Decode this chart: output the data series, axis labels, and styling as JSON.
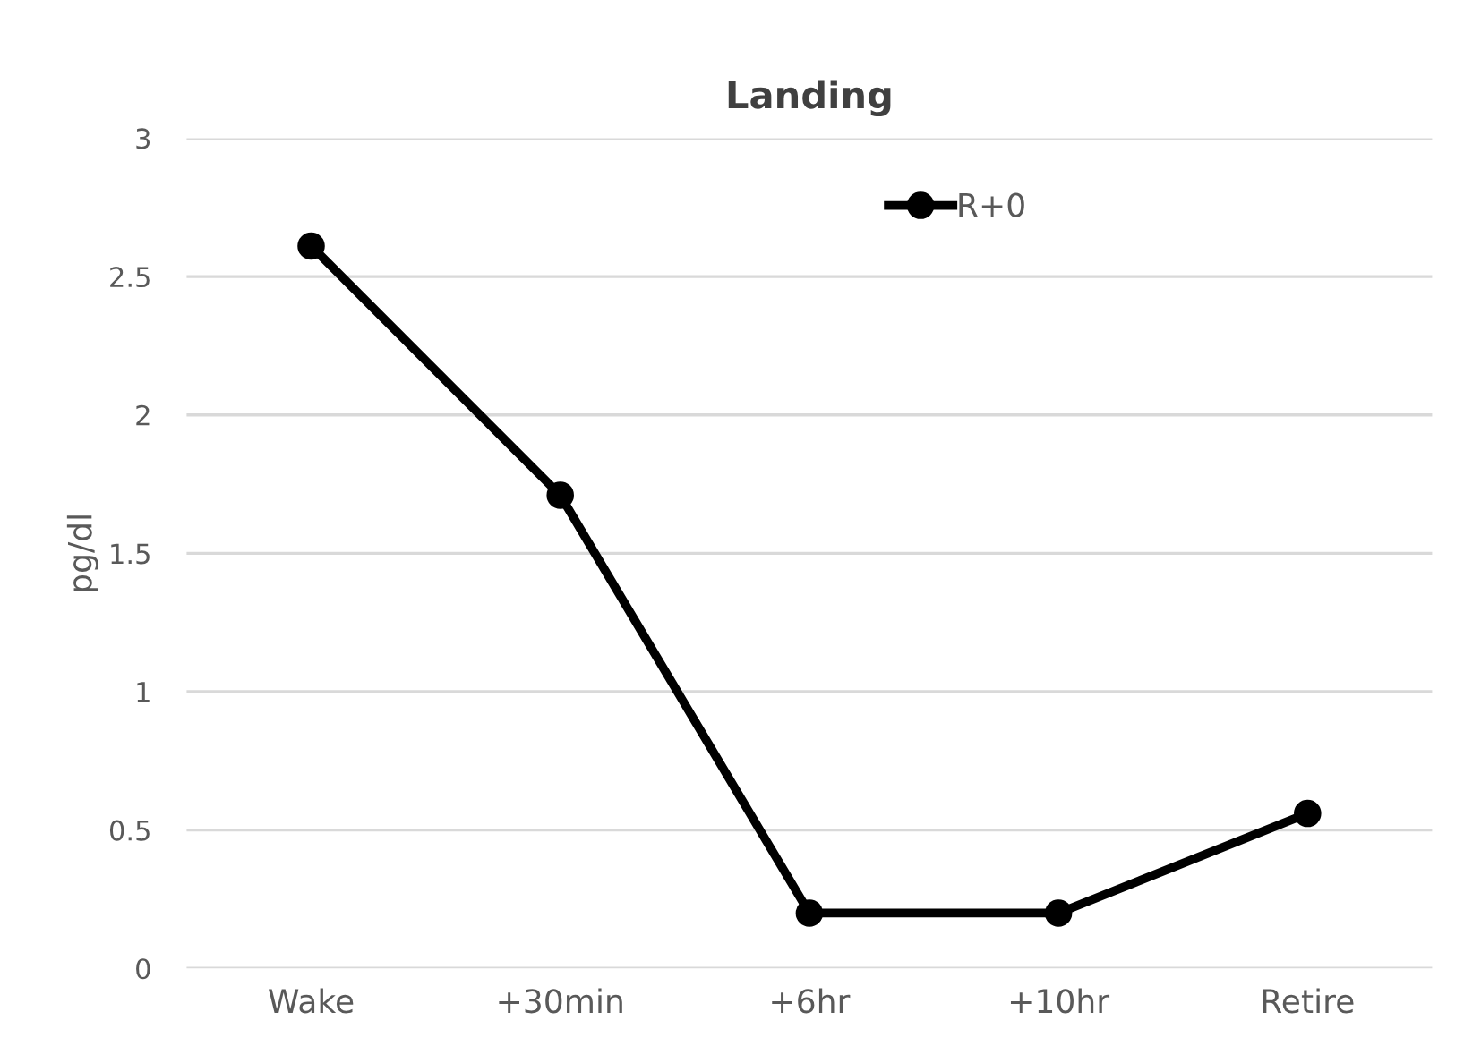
{
  "chart_data": {
    "type": "line",
    "title": "Landing",
    "ylabel": "pg/dl",
    "categories": [
      "Wake",
      "+30min",
      "+6hr",
      "+10hr",
      "Retire"
    ],
    "series": [
      {
        "name": "R+0",
        "color": "#000000",
        "values": [
          2.61,
          1.71,
          0.2,
          0.2,
          0.56
        ]
      }
    ],
    "ylim": [
      0,
      3
    ],
    "yticks": [
      0,
      0.5,
      1,
      1.5,
      2,
      2.5,
      3
    ],
    "grid": "y",
    "legend": "top right",
    "marker": "circle",
    "line_style": "solid"
  }
}
